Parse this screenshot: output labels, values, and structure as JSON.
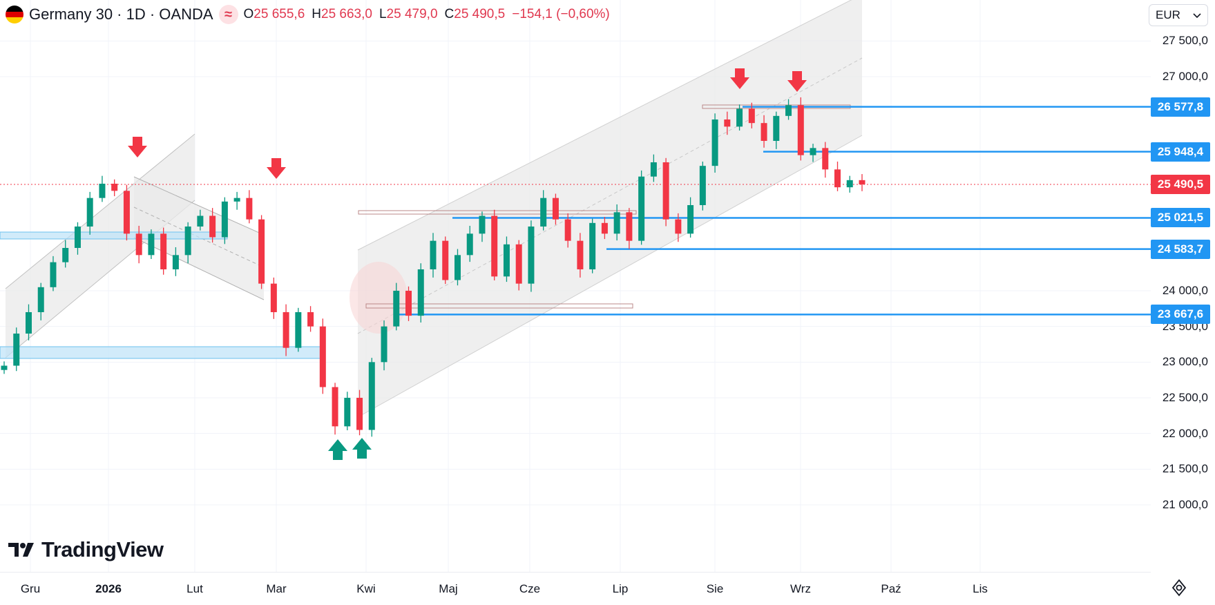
{
  "header": {
    "symbol": "Germany 30 · 1D · OANDA",
    "wave_icon": "≈",
    "o_label": "O",
    "o_value": "25 655,6",
    "h_label": "H",
    "h_value": "25 663,0",
    "l_label": "L",
    "l_value": "25 479,0",
    "c_label": "C",
    "c_value": "25 490,5",
    "change": "−154,1 (−0,60%)"
  },
  "currency": {
    "value": "EUR",
    "icon": "chevron-down-icon"
  },
  "logo": {
    "text": "TradingView"
  },
  "colors": {
    "up": "#089981",
    "down": "#f23645",
    "level": "#2196f3",
    "channel_fill": "#e9e9e9",
    "price_line": "#f23645",
    "zone": "#bde3f8"
  },
  "chart_data": {
    "type": "candlestick",
    "symbol": "Germany 30",
    "interval": "1D",
    "source": "OANDA",
    "currency": "EUR",
    "y_ticks": [
      "27 500,0",
      "27 000,0",
      "24 000,0",
      "23 500,0",
      "23 000,0",
      "22 500,0",
      "22 000,0",
      "21 500,0",
      "21 000,0"
    ],
    "y_tick_values": [
      27500,
      27000,
      24000,
      23500,
      23000,
      22500,
      22000,
      21500,
      21000
    ],
    "x_ticks": [
      {
        "label": "Gru",
        "bold": false
      },
      {
        "label": "2026",
        "bold": true
      },
      {
        "label": "Lut",
        "bold": false
      },
      {
        "label": "Mar",
        "bold": false
      },
      {
        "label": "Kwi",
        "bold": false
      },
      {
        "label": "Maj",
        "bold": false
      },
      {
        "label": "Cze",
        "bold": false
      },
      {
        "label": "Lip",
        "bold": false
      },
      {
        "label": "Sie",
        "bold": false
      },
      {
        "label": "Wrz",
        "bold": false
      },
      {
        "label": "Paź",
        "bold": false
      },
      {
        "label": "Lis",
        "bold": false
      }
    ],
    "last_price": {
      "value": 25490.5,
      "label": "25 490,5"
    },
    "levels": [
      {
        "value": 26577.8,
        "label": "26 577,8"
      },
      {
        "value": 25948.4,
        "label": "25 948,4"
      },
      {
        "value": 25021.5,
        "label": "25 021,5"
      },
      {
        "value": 24583.7,
        "label": "24 583,7"
      },
      {
        "value": 23667.6,
        "label": "23 667,6"
      }
    ],
    "markers": [
      {
        "type": "sell",
        "month": "Sty"
      },
      {
        "type": "sell",
        "month": "Mar"
      },
      {
        "type": "buy",
        "month": "Kwi"
      },
      {
        "type": "buy",
        "month": "Kwi"
      },
      {
        "type": "sell",
        "month": "Sie"
      },
      {
        "type": "sell",
        "month": "Wrz"
      }
    ],
    "close_path": [
      [
        "Gru",
        22950
      ],
      [
        "Gru",
        23400
      ],
      [
        "Gru",
        23700
      ],
      [
        "Gru",
        24050
      ],
      [
        "Gru",
        24400
      ],
      [
        "2026",
        24600
      ],
      [
        "2026",
        24900
      ],
      [
        "2026",
        25300
      ],
      [
        "2026",
        25500
      ],
      [
        "2026",
        25400
      ],
      [
        "2026",
        24800
      ],
      [
        "2026",
        24500
      ],
      [
        "Lut",
        24800
      ],
      [
        "Lut",
        24300
      ],
      [
        "Lut",
        24500
      ],
      [
        "Lut",
        24900
      ],
      [
        "Lut",
        25050
      ],
      [
        "Lut",
        24750
      ],
      [
        "Lut",
        25250
      ],
      [
        "Mar",
        25300
      ],
      [
        "Mar",
        25000
      ],
      [
        "Mar",
        24100
      ],
      [
        "Mar",
        23700
      ],
      [
        "Mar",
        23200
      ],
      [
        "Mar",
        23700
      ],
      [
        "Mar",
        23500
      ],
      [
        "Mar",
        22650
      ],
      [
        "Mar",
        22100
      ],
      [
        "Mar",
        22500
      ],
      [
        "Kwi",
        22050
      ],
      [
        "Kwi",
        23000
      ],
      [
        "Kwi",
        23500
      ],
      [
        "Kwi",
        24000
      ],
      [
        "Kwi",
        23650
      ],
      [
        "Kwi",
        24300
      ],
      [
        "Kwi",
        24700
      ],
      [
        "Maj",
        24150
      ],
      [
        "Maj",
        24500
      ],
      [
        "Maj",
        24800
      ],
      [
        "Maj",
        25050
      ],
      [
        "Maj",
        24200
      ],
      [
        "Maj",
        24650
      ],
      [
        "Maj",
        24100
      ],
      [
        "Cze",
        24900
      ],
      [
        "Cze",
        25300
      ],
      [
        "Cze",
        25000
      ],
      [
        "Cze",
        24700
      ],
      [
        "Cze",
        24300
      ],
      [
        "Cze",
        24950
      ],
      [
        "Lip",
        24800
      ],
      [
        "Lip",
        25100
      ],
      [
        "Lip",
        24700
      ],
      [
        "Lip",
        25600
      ],
      [
        "Lip",
        25800
      ],
      [
        "Lip",
        25000
      ],
      [
        "Lip",
        24800
      ],
      [
        "Sie",
        25200
      ],
      [
        "Sie",
        25750
      ],
      [
        "Sie",
        26400
      ],
      [
        "Sie",
        26300
      ],
      [
        "Sie",
        26550
      ],
      [
        "Sie",
        26350
      ],
      [
        "Wrz",
        26100
      ],
      [
        "Wrz",
        26450
      ],
      [
        "Wrz",
        26600
      ],
      [
        "Wrz",
        25900
      ],
      [
        "Wrz",
        26000
      ],
      [
        "Wrz",
        25700
      ],
      [
        "Wrz",
        25450
      ],
      [
        "Wrz",
        25550
      ],
      [
        "Wrz",
        25490
      ]
    ]
  }
}
